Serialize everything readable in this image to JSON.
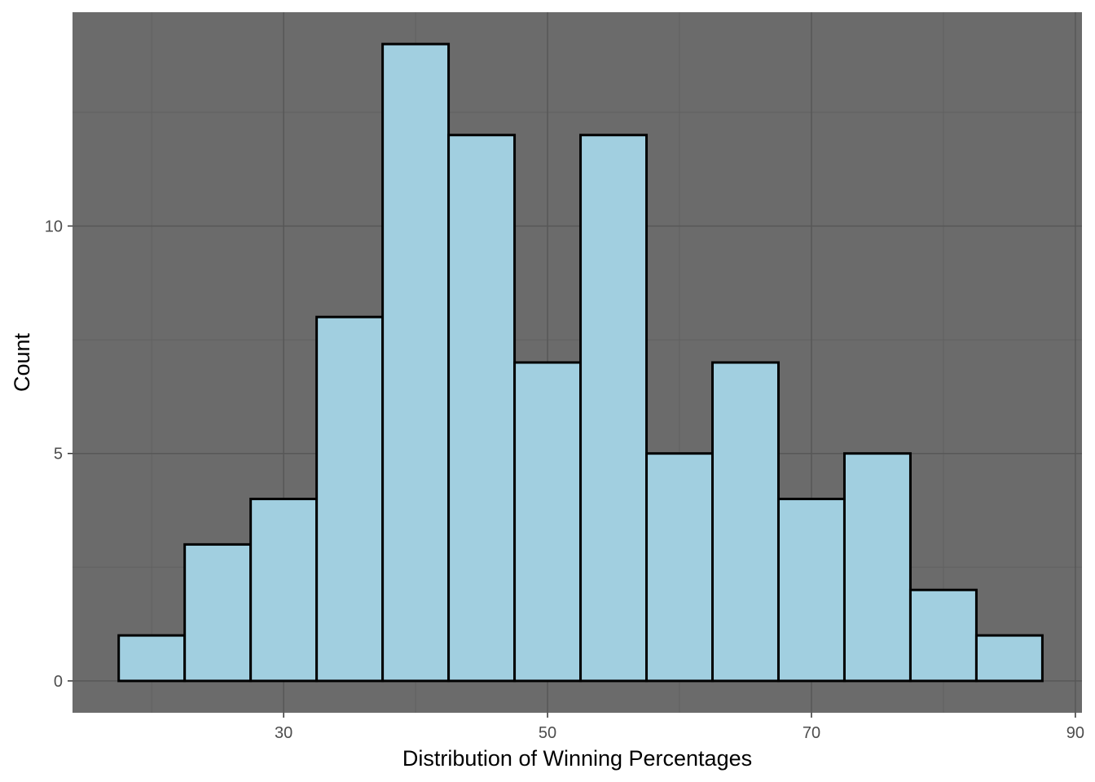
{
  "chart_data": {
    "type": "bar",
    "subtype": "histogram",
    "title": "",
    "xlabel": "Distribution of Winning Percentages",
    "ylabel": "Count",
    "bin_width": 5,
    "bins": [
      {
        "x_start": 17.5,
        "x_end": 22.5,
        "count": 1
      },
      {
        "x_start": 22.5,
        "x_end": 27.5,
        "count": 3
      },
      {
        "x_start": 27.5,
        "x_end": 32.5,
        "count": 4
      },
      {
        "x_start": 32.5,
        "x_end": 37.5,
        "count": 8
      },
      {
        "x_start": 37.5,
        "x_end": 42.5,
        "count": 14
      },
      {
        "x_start": 42.5,
        "x_end": 47.5,
        "count": 12
      },
      {
        "x_start": 47.5,
        "x_end": 52.5,
        "count": 7
      },
      {
        "x_start": 52.5,
        "x_end": 57.5,
        "count": 12
      },
      {
        "x_start": 57.5,
        "x_end": 62.5,
        "count": 5
      },
      {
        "x_start": 62.5,
        "x_end": 67.5,
        "count": 7
      },
      {
        "x_start": 67.5,
        "x_end": 72.5,
        "count": 4
      },
      {
        "x_start": 72.5,
        "x_end": 77.5,
        "count": 5
      },
      {
        "x_start": 77.5,
        "x_end": 82.5,
        "count": 2
      },
      {
        "x_start": 82.5,
        "x_end": 87.5,
        "count": 1
      }
    ],
    "xlim": [
      14,
      90.5
    ],
    "ylim": [
      -0.7,
      14.7
    ],
    "x_major_ticks": [
      30,
      50,
      70,
      90
    ],
    "x_minor_ticks": [
      20,
      40,
      60,
      80
    ],
    "y_major_ticks": [
      0,
      5,
      10
    ],
    "y_minor_ticks": [
      2.5,
      7.5,
      12.5
    ],
    "grid": true,
    "legend": "none",
    "colors": {
      "panel_background": "#6b6b6b",
      "grid_major": "#575757",
      "grid_minor": "#616161",
      "bar_fill": "#a1cfe0",
      "bar_outline": "#000000",
      "tick_text": "#4d4d4d",
      "axis_title_text": "#000000"
    }
  }
}
